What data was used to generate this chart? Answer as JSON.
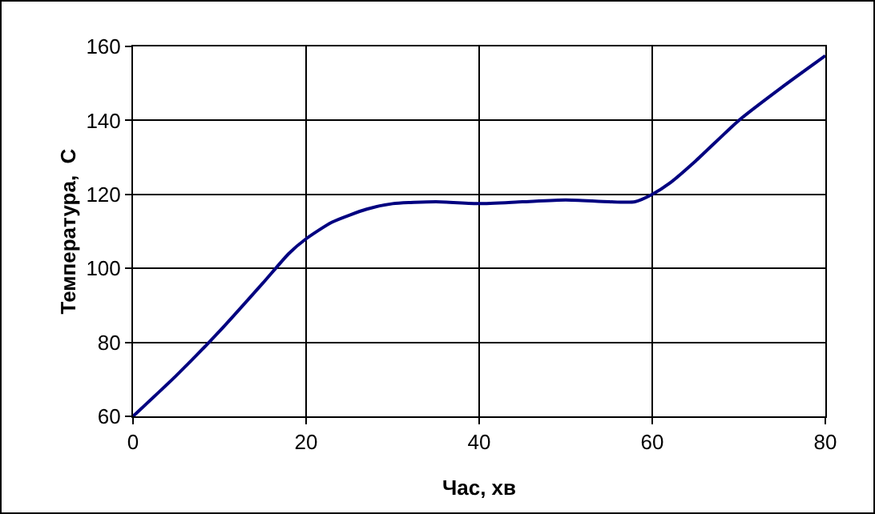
{
  "chart_data": {
    "type": "line",
    "xlabel": "Час, хв",
    "ylabel": "Температура,  С",
    "x": [
      0,
      5,
      10,
      15,
      18,
      20,
      23,
      27,
      30,
      35,
      40,
      45,
      50,
      55,
      58,
      60,
      62,
      65,
      70,
      75,
      80
    ],
    "series": [
      {
        "color": "#000080",
        "values": [
          60,
          71,
          83,
          96,
          104,
          108,
          112.5,
          116,
          117.5,
          118,
          117.5,
          118,
          118.5,
          118,
          118,
          120,
          123,
          129,
          140,
          149,
          157.5
        ]
      }
    ],
    "xlim": [
      0,
      80
    ],
    "xticks": [
      0,
      20,
      40,
      60,
      80
    ],
    "ylim": [
      60,
      160
    ],
    "yticks": [
      60,
      80,
      100,
      120,
      140,
      160
    ],
    "grid": true,
    "marker": "none",
    "line_style": "solid"
  }
}
